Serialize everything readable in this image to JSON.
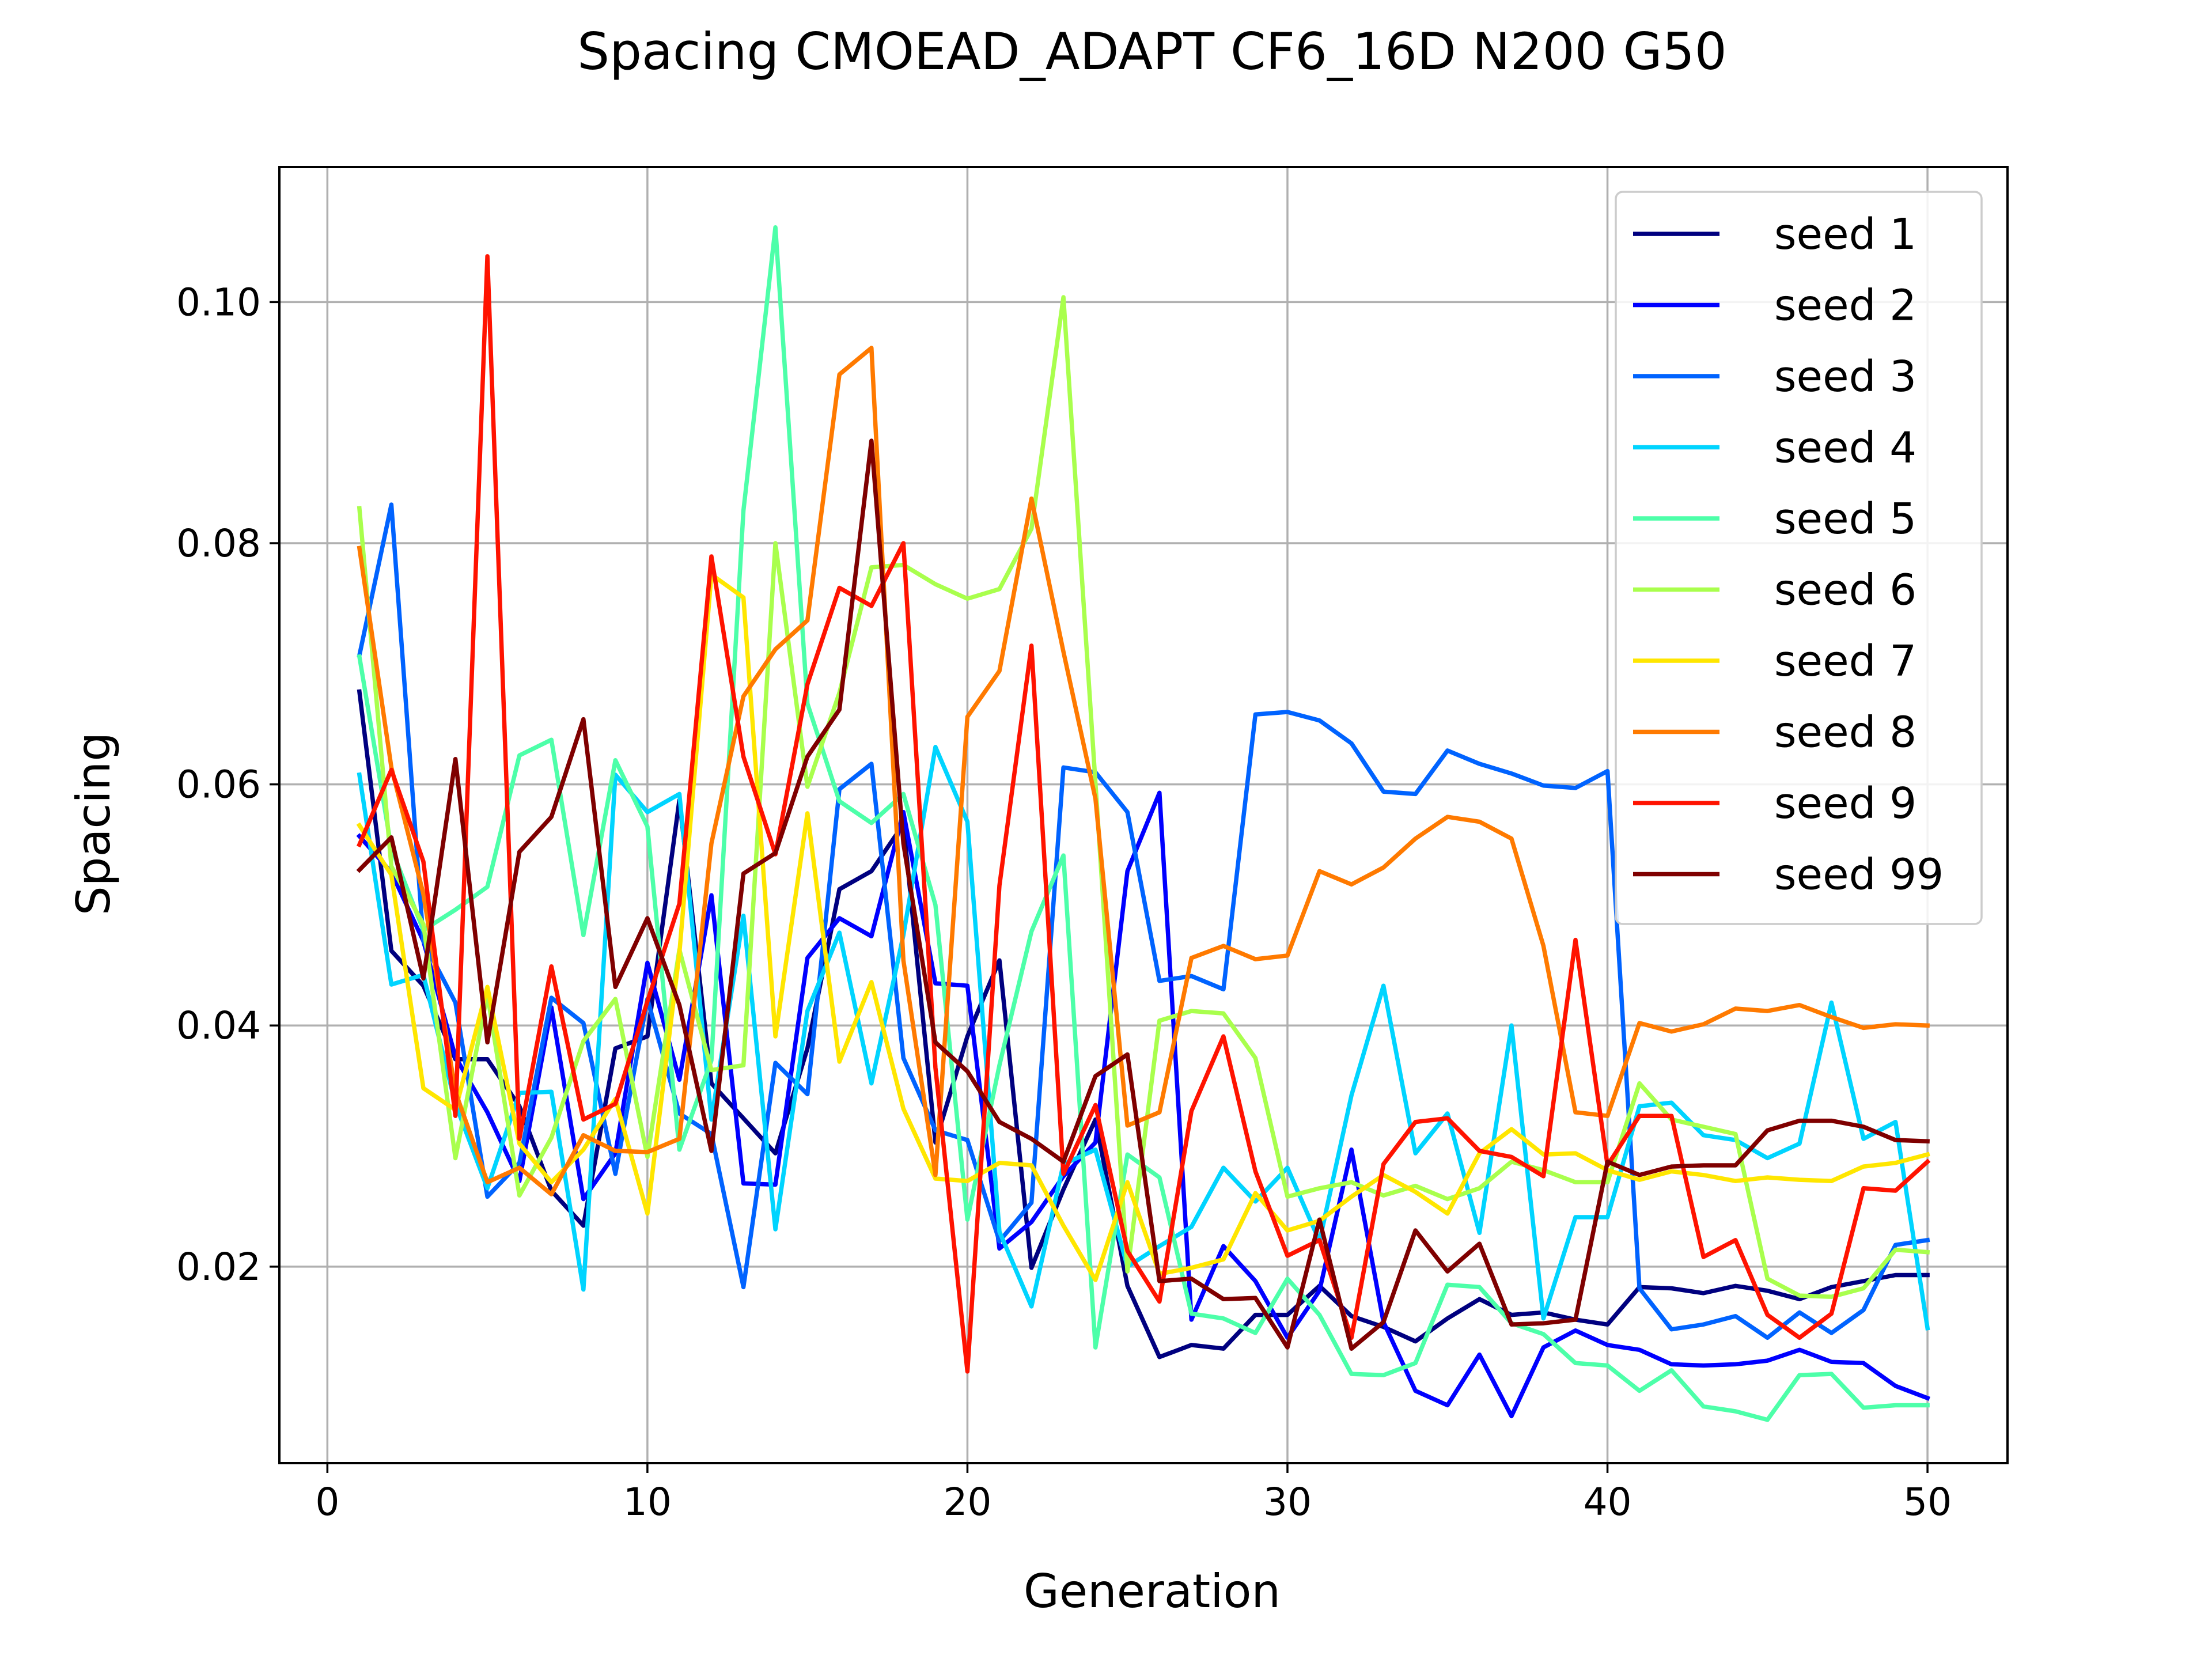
{
  "chart_data": {
    "type": "line",
    "title": "Spacing CMOEAD_ADAPT CF6_16D N200 G50",
    "xlabel": "Generation",
    "ylabel": "Spacing",
    "xlim": [
      -1.5,
      52.5
    ],
    "ylim": [
      0.0037,
      0.1112
    ],
    "xticks": [
      0,
      10,
      20,
      30,
      40,
      50
    ],
    "xtick_labels": [
      "0",
      "10",
      "20",
      "30",
      "40",
      "50"
    ],
    "yticks": [
      0.02,
      0.04,
      0.06,
      0.08,
      0.1
    ],
    "ytick_labels": [
      "0.02",
      "0.04",
      "0.06",
      "0.08",
      "0.10"
    ],
    "grid": true,
    "legend_position": "top-right",
    "x": [
      1,
      2,
      3,
      4,
      5,
      6,
      7,
      8,
      9,
      10,
      11,
      12,
      13,
      14,
      15,
      16,
      17,
      18,
      19,
      20,
      21,
      22,
      23,
      24,
      25,
      26,
      27,
      28,
      29,
      30,
      31,
      32,
      33,
      34,
      35,
      36,
      37,
      38,
      39,
      40,
      41,
      42,
      43,
      44,
      45,
      46,
      47,
      48,
      49,
      50
    ],
    "series": [
      {
        "name": "seed 1",
        "color": "#00007f",
        "values": [
          0.0677,
          0.0462,
          0.0433,
          0.0372,
          0.0372,
          0.0333,
          0.0263,
          0.0234,
          0.0381,
          0.0391,
          0.0587,
          0.0352,
          0.0323,
          0.0294,
          0.0381,
          0.0513,
          0.0528,
          0.0567,
          0.0303,
          0.0391,
          0.0454,
          0.0199,
          0.0264,
          0.0322,
          0.0184,
          0.0125,
          0.0135,
          0.0132,
          0.016,
          0.016,
          0.0184,
          0.0159,
          0.015,
          0.0138,
          0.0157,
          0.0173,
          0.016,
          0.0162,
          0.0156,
          0.0152,
          0.0183,
          0.0182,
          0.0178,
          0.0184,
          0.018,
          0.0173,
          0.0183,
          0.0188,
          0.0193,
          0.0193
        ]
      },
      {
        "name": "seed 2",
        "color": "#0000ff",
        "values": [
          0.0557,
          0.0527,
          0.047,
          0.0374,
          0.0328,
          0.0271,
          0.0415,
          0.0256,
          0.0294,
          0.0452,
          0.0355,
          0.0508,
          0.0269,
          0.0268,
          0.0456,
          0.0489,
          0.0474,
          0.0577,
          0.0435,
          0.0433,
          0.0215,
          0.0237,
          0.0275,
          0.0303,
          0.0528,
          0.0593,
          0.0156,
          0.0217,
          0.0188,
          0.0141,
          0.018,
          0.0297,
          0.0154,
          0.0097,
          0.0085,
          0.0127,
          0.0076,
          0.0133,
          0.0147,
          0.0135,
          0.0131,
          0.0119,
          0.0118,
          0.0119,
          0.0122,
          0.0131,
          0.0121,
          0.012,
          0.0101,
          0.0091
        ]
      },
      {
        "name": "seed 3",
        "color": "#0063ff",
        "values": [
          0.0707,
          0.0832,
          0.047,
          0.0419,
          0.0258,
          0.0286,
          0.0423,
          0.0402,
          0.0277,
          0.0422,
          0.0327,
          0.031,
          0.0183,
          0.0369,
          0.0343,
          0.0596,
          0.0617,
          0.0373,
          0.0313,
          0.0305,
          0.0221,
          0.0253,
          0.0614,
          0.061,
          0.0577,
          0.0437,
          0.0441,
          0.043,
          0.0658,
          0.066,
          0.0653,
          0.0634,
          0.0594,
          0.0592,
          0.0628,
          0.0617,
          0.0609,
          0.0599,
          0.0597,
          0.0611,
          0.0182,
          0.0148,
          0.0152,
          0.0159,
          0.0141,
          0.0162,
          0.0145,
          0.0164,
          0.0218,
          0.0222
        ]
      },
      {
        "name": "seed 4",
        "color": "#00d4ff",
        "values": [
          0.0608,
          0.0434,
          0.0442,
          0.0335,
          0.0265,
          0.0344,
          0.0345,
          0.0181,
          0.0608,
          0.0577,
          0.0592,
          0.0322,
          0.0491,
          0.0231,
          0.0412,
          0.0477,
          0.0352,
          0.0475,
          0.0631,
          0.0569,
          0.0229,
          0.0167,
          0.0285,
          0.0297,
          0.02,
          0.0217,
          0.0233,
          0.0282,
          0.0254,
          0.0282,
          0.0221,
          0.0342,
          0.0433,
          0.0294,
          0.0327,
          0.0228,
          0.04,
          0.0157,
          0.0241,
          0.0241,
          0.0333,
          0.0336,
          0.0309,
          0.0305,
          0.029,
          0.0302,
          0.0419,
          0.0306,
          0.032,
          0.0149
        ]
      },
      {
        "name": "seed 5",
        "color": "#4dffa9",
        "values": [
          0.0706,
          0.0547,
          0.0479,
          0.0496,
          0.0515,
          0.0624,
          0.0637,
          0.0475,
          0.062,
          0.0565,
          0.0297,
          0.0371,
          0.0827,
          0.1062,
          0.0667,
          0.0586,
          0.0568,
          0.0592,
          0.05,
          0.0239,
          0.0367,
          0.0478,
          0.0541,
          0.0133,
          0.0293,
          0.0274,
          0.0161,
          0.0157,
          0.0145,
          0.019,
          0.016,
          0.0111,
          0.011,
          0.012,
          0.0185,
          0.0183,
          0.0153,
          0.0144,
          0.012,
          0.0118,
          0.0097,
          0.0114,
          0.0084,
          0.008,
          0.0073,
          0.011,
          0.0111,
          0.0083,
          0.0085,
          0.0085
        ]
      },
      {
        "name": "seed 6",
        "color": "#a9ff4d",
        "values": [
          0.0829,
          0.0532,
          0.0484,
          0.029,
          0.0426,
          0.0259,
          0.0307,
          0.0387,
          0.0422,
          0.0291,
          0.0463,
          0.0363,
          0.0367,
          0.08,
          0.0598,
          0.0676,
          0.078,
          0.0782,
          0.0766,
          0.0754,
          0.0762,
          0.0812,
          0.1004,
          0.0601,
          0.0196,
          0.0404,
          0.0412,
          0.041,
          0.0373,
          0.0258,
          0.0265,
          0.027,
          0.0259,
          0.0267,
          0.0256,
          0.0265,
          0.0287,
          0.028,
          0.027,
          0.027,
          0.0352,
          0.0322,
          0.0316,
          0.031,
          0.019,
          0.0176,
          0.0175,
          0.0182,
          0.0214,
          0.0212
        ]
      },
      {
        "name": "seed 7",
        "color": "#ffe600",
        "values": [
          0.0566,
          0.0525,
          0.0348,
          0.033,
          0.0432,
          0.0302,
          0.027,
          0.0297,
          0.0339,
          0.0244,
          0.046,
          0.0774,
          0.0755,
          0.0391,
          0.0576,
          0.037,
          0.0436,
          0.0331,
          0.0273,
          0.0271,
          0.0286,
          0.0284,
          0.0234,
          0.0189,
          0.027,
          0.0194,
          0.0199,
          0.0206,
          0.0261,
          0.023,
          0.0238,
          0.0258,
          0.0276,
          0.0262,
          0.0244,
          0.0294,
          0.0314,
          0.0293,
          0.0294,
          0.028,
          0.0272,
          0.0279,
          0.0276,
          0.0271,
          0.0274,
          0.0272,
          0.0271,
          0.0283,
          0.0286,
          0.0293
        ]
      },
      {
        "name": "seed 8",
        "color": "#ff7a00",
        "values": [
          0.0796,
          0.0614,
          0.0509,
          0.0345,
          0.027,
          0.0282,
          0.026,
          0.0309,
          0.0296,
          0.0295,
          0.0306,
          0.0551,
          0.0673,
          0.0712,
          0.0736,
          0.094,
          0.0962,
          0.0454,
          0.0276,
          0.0656,
          0.0694,
          0.0837,
          0.071,
          0.0588,
          0.0317,
          0.0328,
          0.0456,
          0.0466,
          0.0455,
          0.0458,
          0.0528,
          0.0517,
          0.0531,
          0.0555,
          0.0573,
          0.0569,
          0.0555,
          0.0466,
          0.0328,
          0.0325,
          0.0402,
          0.0395,
          0.0401,
          0.0414,
          0.0412,
          0.0417,
          0.0407,
          0.0398,
          0.0401,
          0.04
        ]
      },
      {
        "name": "seed 9",
        "color": "#ff1300",
        "values": [
          0.055,
          0.0612,
          0.0536,
          0.0325,
          0.1038,
          0.0306,
          0.0449,
          0.0322,
          0.0335,
          0.042,
          0.0501,
          0.0789,
          0.0623,
          0.0542,
          0.0683,
          0.0763,
          0.0748,
          0.08,
          0.0365,
          0.0113,
          0.0516,
          0.0715,
          0.0277,
          0.0334,
          0.0213,
          0.0171,
          0.0329,
          0.0391,
          0.0279,
          0.0209,
          0.0222,
          0.0141,
          0.0285,
          0.032,
          0.0323,
          0.0296,
          0.0291,
          0.0275,
          0.0471,
          0.0284,
          0.0325,
          0.0325,
          0.0208,
          0.0222,
          0.016,
          0.0141,
          0.0161,
          0.0265,
          0.0263,
          0.0287
        ]
      },
      {
        "name": "seed 99",
        "color": "#7f0000",
        "values": [
          0.0529,
          0.0556,
          0.0439,
          0.0621,
          0.0386,
          0.0544,
          0.0573,
          0.0654,
          0.0432,
          0.0489,
          0.0417,
          0.0296,
          0.0526,
          0.0543,
          0.0623,
          0.0662,
          0.0885,
          0.0551,
          0.0386,
          0.0362,
          0.032,
          0.0306,
          0.0287,
          0.0358,
          0.0376,
          0.0188,
          0.019,
          0.0173,
          0.0174,
          0.0133,
          0.0239,
          0.0132,
          0.0154,
          0.023,
          0.0196,
          0.0219,
          0.0152,
          0.0153,
          0.0156,
          0.0287,
          0.0276,
          0.0283,
          0.0284,
          0.0284,
          0.0313,
          0.0321,
          0.0321,
          0.0316,
          0.0305,
          0.0304
        ]
      }
    ]
  }
}
